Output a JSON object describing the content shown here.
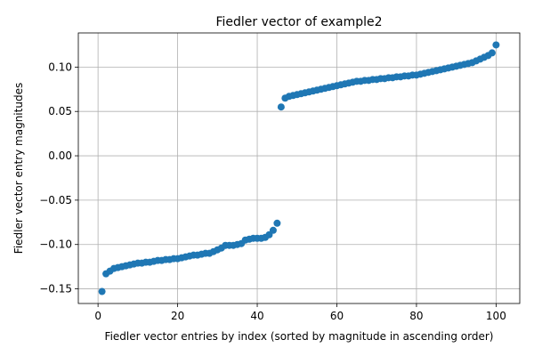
{
  "chart_data": {
    "type": "scatter",
    "title": "Fiedler vector of example2",
    "xlabel": "Fiedler vector entries by index (sorted by magnitude in ascending order)",
    "ylabel": "Fiedler vector entry magnitudes",
    "xlim": [
      -4.95,
      105.95
    ],
    "ylim": [
      -0.1665,
      0.1385
    ],
    "xticks": [
      0,
      20,
      40,
      60,
      80,
      100
    ],
    "xtick_labels": [
      "0",
      "20",
      "40",
      "60",
      "80",
      "100"
    ],
    "yticks": [
      -0.15,
      -0.1,
      -0.05,
      0.0,
      0.05,
      0.1
    ],
    "ytick_labels": [
      "−0.15",
      "−0.10",
      "−0.05",
      "0.00",
      "0.05",
      "0.10"
    ],
    "grid": true,
    "marker_color": "#1f77b4",
    "x": [
      1,
      2,
      3,
      4,
      5,
      6,
      7,
      8,
      9,
      10,
      11,
      12,
      13,
      14,
      15,
      16,
      17,
      18,
      19,
      20,
      21,
      22,
      23,
      24,
      25,
      26,
      27,
      28,
      29,
      30,
      31,
      32,
      33,
      34,
      35,
      36,
      37,
      38,
      39,
      40,
      41,
      42,
      43,
      44,
      45,
      46,
      47,
      48,
      49,
      50,
      51,
      52,
      53,
      54,
      55,
      56,
      57,
      58,
      59,
      60,
      61,
      62,
      63,
      64,
      65,
      66,
      67,
      68,
      69,
      70,
      71,
      72,
      73,
      74,
      75,
      76,
      77,
      78,
      79,
      80,
      81,
      82,
      83,
      84,
      85,
      86,
      87,
      88,
      89,
      90,
      91,
      92,
      93,
      94,
      95,
      96,
      97,
      98,
      99,
      100
    ],
    "y": [
      -0.153,
      -0.133,
      -0.13,
      -0.127,
      -0.126,
      -0.125,
      -0.124,
      -0.123,
      -0.122,
      -0.121,
      -0.121,
      -0.12,
      -0.12,
      -0.119,
      -0.118,
      -0.118,
      -0.117,
      -0.117,
      -0.116,
      -0.116,
      -0.115,
      -0.114,
      -0.113,
      -0.112,
      -0.112,
      -0.111,
      -0.11,
      -0.11,
      -0.108,
      -0.106,
      -0.104,
      -0.101,
      -0.101,
      -0.101,
      -0.1,
      -0.099,
      -0.095,
      -0.094,
      -0.093,
      -0.093,
      -0.093,
      -0.092,
      -0.089,
      -0.084,
      -0.076,
      0.055,
      0.065,
      0.067,
      0.068,
      0.069,
      0.07,
      0.071,
      0.072,
      0.073,
      0.074,
      0.075,
      0.076,
      0.077,
      0.078,
      0.079,
      0.08,
      0.081,
      0.082,
      0.083,
      0.084,
      0.084,
      0.085,
      0.085,
      0.086,
      0.086,
      0.087,
      0.087,
      0.088,
      0.088,
      0.089,
      0.089,
      0.09,
      0.09,
      0.091,
      0.091,
      0.092,
      0.093,
      0.094,
      0.095,
      0.096,
      0.097,
      0.098,
      0.099,
      0.1,
      0.101,
      0.102,
      0.103,
      0.104,
      0.105,
      0.107,
      0.109,
      0.111,
      0.113,
      0.116,
      0.125
    ]
  }
}
